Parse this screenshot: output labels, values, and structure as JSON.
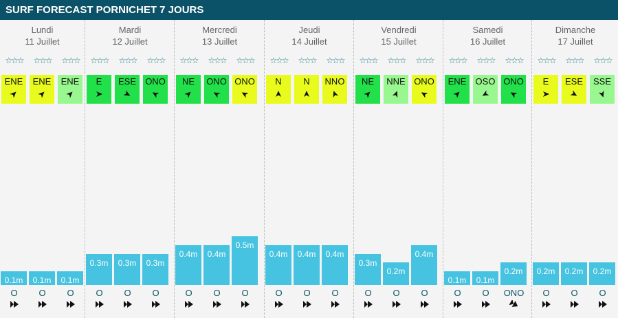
{
  "title": "SURF FORECAST PORNICHET 7 JOURS",
  "stars": "☆☆☆",
  "colors": {
    "header": "#0b5167",
    "wave": "#45c3e0",
    "good": "#22e04a",
    "medium": "#e9fb1c",
    "light": "#99f78f"
  },
  "days": [
    {
      "name": "Lundi",
      "date": "11 Juillet",
      "slots": [
        {
          "wind": "ENE",
          "wind_color": "medium",
          "wind_deg": 45,
          "wave": "0.1m",
          "wave_height": 0.1,
          "swell": "O",
          "swell_deg": 270
        },
        {
          "wind": "ENE",
          "wind_color": "medium",
          "wind_deg": 45,
          "wave": "0.1m",
          "wave_height": 0.1,
          "swell": "O",
          "swell_deg": 270
        },
        {
          "wind": "ENE",
          "wind_color": "light",
          "wind_deg": 45,
          "wave": "0.1m",
          "wave_height": 0.1,
          "swell": "O",
          "swell_deg": 270
        }
      ]
    },
    {
      "name": "Mardi",
      "date": "12 Juillet",
      "slots": [
        {
          "wind": "E",
          "wind_color": "good",
          "wind_deg": 90,
          "wave": "0.3m",
          "wave_height": 0.3,
          "swell": "O",
          "swell_deg": 270
        },
        {
          "wind": "ESE",
          "wind_color": "good",
          "wind_deg": 120,
          "wave": "0.3m",
          "wave_height": 0.3,
          "swell": "O",
          "swell_deg": 270
        },
        {
          "wind": "ONO",
          "wind_color": "good",
          "wind_deg": 300,
          "wave": "0.3m",
          "wave_height": 0.3,
          "swell": "O",
          "swell_deg": 270
        }
      ]
    },
    {
      "name": "Mercredi",
      "date": "13 Juillet",
      "slots": [
        {
          "wind": "NE",
          "wind_color": "good",
          "wind_deg": 45,
          "wave": "0.4m",
          "wave_height": 0.4,
          "swell": "O",
          "swell_deg": 270
        },
        {
          "wind": "ONO",
          "wind_color": "good",
          "wind_deg": 300,
          "wave": "0.4m",
          "wave_height": 0.4,
          "swell": "O",
          "swell_deg": 270
        },
        {
          "wind": "ONO",
          "wind_color": "medium",
          "wind_deg": 300,
          "wave": "0.5m",
          "wave_height": 0.5,
          "swell": "O",
          "swell_deg": 270
        }
      ]
    },
    {
      "name": "Jeudi",
      "date": "14 Juillet",
      "slots": [
        {
          "wind": "N",
          "wind_color": "medium",
          "wind_deg": 0,
          "wave": "0.4m",
          "wave_height": 0.4,
          "swell": "O",
          "swell_deg": 270
        },
        {
          "wind": "N",
          "wind_color": "medium",
          "wind_deg": 0,
          "wave": "0.4m",
          "wave_height": 0.4,
          "swell": "O",
          "swell_deg": 270
        },
        {
          "wind": "NNO",
          "wind_color": "medium",
          "wind_deg": 340,
          "wave": "0.4m",
          "wave_height": 0.4,
          "swell": "O",
          "swell_deg": 270
        }
      ]
    },
    {
      "name": "Vendredi",
      "date": "15 Juillet",
      "slots": [
        {
          "wind": "NE",
          "wind_color": "good",
          "wind_deg": 45,
          "wave": "0.3m",
          "wave_height": 0.3,
          "swell": "O",
          "swell_deg": 270
        },
        {
          "wind": "NNE",
          "wind_color": "light",
          "wind_deg": 22,
          "wave": "0.2m",
          "wave_height": 0.2,
          "swell": "O",
          "swell_deg": 270
        },
        {
          "wind": "ONO",
          "wind_color": "medium",
          "wind_deg": 300,
          "wave": "0.4m",
          "wave_height": 0.4,
          "swell": "O",
          "swell_deg": 270
        }
      ]
    },
    {
      "name": "Samedi",
      "date": "16 Juillet",
      "slots": [
        {
          "wind": "ENE",
          "wind_color": "good",
          "wind_deg": 45,
          "wave": "0.1m",
          "wave_height": 0.1,
          "swell": "O",
          "swell_deg": 270
        },
        {
          "wind": "OSO",
          "wind_color": "light",
          "wind_deg": 240,
          "wave": "0.1m",
          "wave_height": 0.1,
          "swell": "O",
          "swell_deg": 270
        },
        {
          "wind": "ONO",
          "wind_color": "good",
          "wind_deg": 300,
          "wave": "0.2m",
          "wave_height": 0.2,
          "swell": "ONO",
          "swell_deg": 300
        }
      ]
    },
    {
      "name": "Dimanche",
      "date": "17 Juillet",
      "slots": [
        {
          "wind": "E",
          "wind_color": "medium",
          "wind_deg": 90,
          "wave": "0.2m",
          "wave_height": 0.2,
          "swell": "O",
          "swell_deg": 270
        },
        {
          "wind": "ESE",
          "wind_color": "medium",
          "wind_deg": 120,
          "wave": "0.2m",
          "wave_height": 0.2,
          "swell": "O",
          "swell_deg": 270
        },
        {
          "wind": "SSE",
          "wind_color": "light",
          "wind_deg": 160,
          "wave": "0.2m",
          "wave_height": 0.2,
          "swell": "O",
          "swell_deg": 270
        }
      ]
    }
  ]
}
